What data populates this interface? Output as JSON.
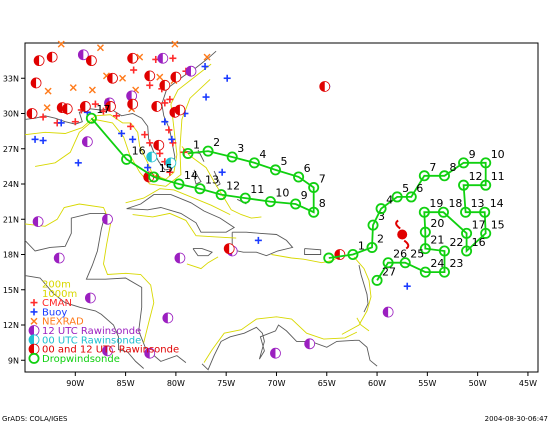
{
  "footer": {
    "left": "GrADS: COLA/IGES",
    "right": "2004-08-30-06:47"
  },
  "colors": {
    "coast": "#5a5a5a",
    "shelf": "#d8d800",
    "cman": "#ff2a2a",
    "buoy": "#1a3aff",
    "nexrad": "#ff7a1a",
    "raob12": "#9b1fc0",
    "raob00": "#1fbfd0",
    "raob0012": "#e00000",
    "track": "#10d010",
    "storm": "#e00000"
  },
  "map": {
    "lon_range": [
      -95,
      -44
    ],
    "lat_range": [
      8,
      36
    ],
    "lon_ticks": [
      {
        "lon": -90,
        "label": "90W"
      },
      {
        "lon": -85,
        "label": "85W"
      },
      {
        "lon": -80,
        "label": "80W"
      },
      {
        "lon": -75,
        "label": "75W"
      },
      {
        "lon": -70,
        "label": "70W"
      },
      {
        "lon": -65,
        "label": "65W"
      },
      {
        "lon": -60,
        "label": "60W"
      },
      {
        "lon": -55,
        "label": "55W"
      },
      {
        "lon": -50,
        "label": "50W"
      },
      {
        "lon": -45,
        "label": "45W"
      }
    ],
    "lat_ticks": [
      {
        "lat": 9,
        "label": "9N"
      },
      {
        "lat": 12,
        "label": "12N"
      },
      {
        "lat": 15,
        "label": "15N"
      },
      {
        "lat": 18,
        "label": "18N"
      },
      {
        "lat": 21,
        "label": "21N"
      },
      {
        "lat": 24,
        "label": "24N"
      },
      {
        "lat": 27,
        "label": "27N"
      },
      {
        "lat": 30,
        "label": "30N"
      },
      {
        "lat": 33,
        "label": "33N"
      }
    ]
  },
  "legend": [
    {
      "symbol": "line-yellow",
      "label": "200m"
    },
    {
      "symbol": "line-yellow",
      "label": "1000m"
    },
    {
      "symbol": "cman",
      "label": "CMAN"
    },
    {
      "symbol": "buoy",
      "label": "Buoy"
    },
    {
      "symbol": "nexrad",
      "label": "NEXRAD"
    },
    {
      "symbol": "raob12",
      "label": "12 UTC Rawinsonde"
    },
    {
      "symbol": "raob00",
      "label": "00 UTC Rawinsonde"
    },
    {
      "symbol": "raob0012",
      "label": "00 and 12 UTC Rawinsonde"
    },
    {
      "symbol": "drop",
      "label": "Dropwindsonde"
    }
  ],
  "storm": {
    "lon": -57.5,
    "lat": 19.7
  },
  "track_main": [
    {
      "lon": -78.8,
      "lat": 26.6,
      "label": "1"
    },
    {
      "lon": -76.8,
      "lat": 26.8,
      "label": "2"
    },
    {
      "lon": -74.4,
      "lat": 26.3,
      "label": "3"
    },
    {
      "lon": -72.2,
      "lat": 25.8,
      "label": "4"
    },
    {
      "lon": -70.1,
      "lat": 25.2,
      "label": "5"
    },
    {
      "lon": -67.8,
      "lat": 24.6,
      "label": "6"
    },
    {
      "lon": -66.3,
      "lat": 23.7,
      "label": "7"
    },
    {
      "lon": -66.3,
      "lat": 21.6,
      "label": "8"
    },
    {
      "lon": -68.1,
      "lat": 22.3,
      "label": "9"
    },
    {
      "lon": -70.6,
      "lat": 22.5,
      "label": "10"
    },
    {
      "lon": -73.1,
      "lat": 22.8,
      "label": "11"
    },
    {
      "lon": -75.5,
      "lat": 23.1,
      "label": "12"
    },
    {
      "lon": -77.6,
      "lat": 23.6,
      "label": "13"
    },
    {
      "lon": -79.7,
      "lat": 24.0,
      "label": "14"
    },
    {
      "lon": -82.2,
      "lat": 24.6,
      "label": "15"
    },
    {
      "lon": -84.9,
      "lat": 26.1,
      "label": "16"
    },
    {
      "lon": -88.4,
      "lat": 29.6,
      "label": "17"
    }
  ],
  "track_east": [
    {
      "lon": -64.8,
      "lat": 17.7,
      "label": ""
    },
    {
      "lon": -62.4,
      "lat": 18.0,
      "label": "1"
    },
    {
      "lon": -60.5,
      "lat": 18.6,
      "label": "2"
    },
    {
      "lon": -60.4,
      "lat": 20.5,
      "label": "3"
    },
    {
      "lon": -59.6,
      "lat": 21.9,
      "label": "4"
    },
    {
      "lon": -58.0,
      "lat": 22.9,
      "label": "5"
    },
    {
      "lon": -56.6,
      "lat": 22.9,
      "label": "6"
    },
    {
      "lon": -55.3,
      "lat": 24.7,
      "label": "7"
    },
    {
      "lon": -53.3,
      "lat": 24.7,
      "label": "8"
    },
    {
      "lon": -51.4,
      "lat": 25.8,
      "label": "9"
    },
    {
      "lon": -49.2,
      "lat": 25.8,
      "label": "10"
    },
    {
      "lon": -49.2,
      "lat": 23.9,
      "label": "11"
    },
    {
      "lon": -51.4,
      "lat": 23.9,
      "label": "12"
    },
    {
      "lon": -51.2,
      "lat": 21.6,
      "label": "13"
    },
    {
      "lon": -49.3,
      "lat": 21.6,
      "label": "14"
    },
    {
      "lon": -49.2,
      "lat": 19.8,
      "label": "15"
    },
    {
      "lon": -51.1,
      "lat": 18.3,
      "label": "16"
    },
    {
      "lon": -51.1,
      "lat": 19.8,
      "label": "17"
    },
    {
      "lon": -53.4,
      "lat": 21.6,
      "label": "18"
    },
    {
      "lon": -55.3,
      "lat": 21.6,
      "label": "19"
    },
    {
      "lon": -55.2,
      "lat": 19.9,
      "label": "20"
    },
    {
      "lon": -55.2,
      "lat": 18.5,
      "label": "21"
    },
    {
      "lon": -53.3,
      "lat": 18.3,
      "label": "22"
    },
    {
      "lon": -53.3,
      "lat": 16.5,
      "label": "23"
    },
    {
      "lon": -55.2,
      "lat": 16.5,
      "label": "24"
    },
    {
      "lon": -57.2,
      "lat": 17.3,
      "label": "25"
    },
    {
      "lon": -58.9,
      "lat": 17.3,
      "label": "26"
    },
    {
      "lon": -60.0,
      "lat": 15.8,
      "label": "27"
    }
  ],
  "stations": {
    "cman": [
      [
        -82.0,
        34.6
      ],
      [
        -80.3,
        34.7
      ],
      [
        -79.0,
        33.6
      ],
      [
        -84.2,
        33.7
      ],
      [
        -82.6,
        32.4
      ],
      [
        -81.4,
        32.1
      ],
      [
        -80.6,
        31.2
      ],
      [
        -81.1,
        30.9
      ],
      [
        -88.0,
        30.8
      ],
      [
        -89.4,
        30.3
      ],
      [
        -90.8,
        30.2
      ],
      [
        -87.2,
        30.2
      ],
      [
        -85.9,
        29.8
      ],
      [
        -84.5,
        28.9
      ],
      [
        -83.1,
        28.2
      ],
      [
        -82.6,
        27.5
      ],
      [
        -81.6,
        26.6
      ],
      [
        -81.1,
        25.9
      ],
      [
        -80.6,
        25.0
      ],
      [
        -81.9,
        24.6
      ],
      [
        -80.3,
        27.5
      ],
      [
        -79.2,
        26.7
      ],
      [
        -80.7,
        28.6
      ],
      [
        -90.0,
        29.3
      ],
      [
        -91.8,
        29.2
      ],
      [
        -93.2,
        29.7
      ]
    ],
    "buoy": [
      [
        -74.9,
        33.0
      ],
      [
        -77.1,
        34.0
      ],
      [
        -88.8,
        30.1
      ],
      [
        -91.4,
        29.2
      ],
      [
        -84.3,
        27.8
      ],
      [
        -85.4,
        28.3
      ],
      [
        -82.8,
        25.4
      ],
      [
        -81.1,
        29.3
      ],
      [
        -80.4,
        27.8
      ],
      [
        -77.0,
        31.4
      ],
      [
        -79.1,
        30.0
      ],
      [
        -89.7,
        25.8
      ],
      [
        -94.0,
        27.8
      ],
      [
        -93.2,
        27.7
      ],
      [
        -65.0,
        32.3
      ],
      [
        -57.0,
        15.3
      ],
      [
        -75.4,
        25.0
      ],
      [
        -71.8,
        19.2
      ]
    ],
    "nexrad": [
      [
        -91.4,
        35.9
      ],
      [
        -87.5,
        35.6
      ],
      [
        -83.6,
        34.8
      ],
      [
        -80.2,
        32.8
      ],
      [
        -84.0,
        32.0
      ],
      [
        -86.9,
        33.2
      ],
      [
        -90.2,
        32.2
      ],
      [
        -92.7,
        31.9
      ],
      [
        -92.8,
        30.5
      ],
      [
        -84.4,
        30.4
      ],
      [
        -86.7,
        31.0
      ],
      [
        -80.1,
        35.9
      ],
      [
        -76.9,
        34.8
      ],
      [
        -85.3,
        33.0
      ],
      [
        -81.6,
        33.1
      ],
      [
        -88.3,
        32.0
      ]
    ],
    "raob12": [
      [
        -89.2,
        35.0
      ],
      [
        -86.6,
        30.9
      ],
      [
        -84.4,
        31.5
      ],
      [
        -81.3,
        34.7
      ],
      [
        -78.5,
        33.6
      ],
      [
        -88.8,
        27.6
      ],
      [
        -93.7,
        20.8
      ],
      [
        -86.8,
        21.0
      ],
      [
        -91.6,
        17.7
      ],
      [
        -79.6,
        17.7
      ],
      [
        -74.4,
        18.3
      ],
      [
        -88.5,
        14.3
      ],
      [
        -80.8,
        12.6
      ],
      [
        -86.8,
        9.8
      ],
      [
        -82.6,
        9.6
      ],
      [
        -70.1,
        9.6
      ],
      [
        -66.7,
        10.4
      ],
      [
        -58.9,
        13.1
      ]
    ],
    "raob00": [
      [
        -82.4,
        26.3
      ],
      [
        -80.5,
        25.8
      ]
    ],
    "raob0012": [
      [
        -93.6,
        34.5
      ],
      [
        -92.3,
        34.8
      ],
      [
        -88.4,
        34.5
      ],
      [
        -86.3,
        33.0
      ],
      [
        -84.3,
        34.7
      ],
      [
        -82.6,
        33.2
      ],
      [
        -81.1,
        32.4
      ],
      [
        -80.0,
        33.1
      ],
      [
        -93.9,
        32.6
      ],
      [
        -94.3,
        30.0
      ],
      [
        -91.3,
        30.5
      ],
      [
        -90.8,
        30.4
      ],
      [
        -89.0,
        30.6
      ],
      [
        -86.5,
        30.6
      ],
      [
        -81.9,
        30.6
      ],
      [
        -80.1,
        30.1
      ],
      [
        -84.3,
        30.8
      ],
      [
        -81.7,
        27.3
      ],
      [
        -82.7,
        24.6
      ],
      [
        -79.6,
        30.3
      ],
      [
        -65.2,
        32.3
      ],
      [
        -63.7,
        18.0
      ],
      [
        -74.7,
        18.5
      ]
    ]
  }
}
